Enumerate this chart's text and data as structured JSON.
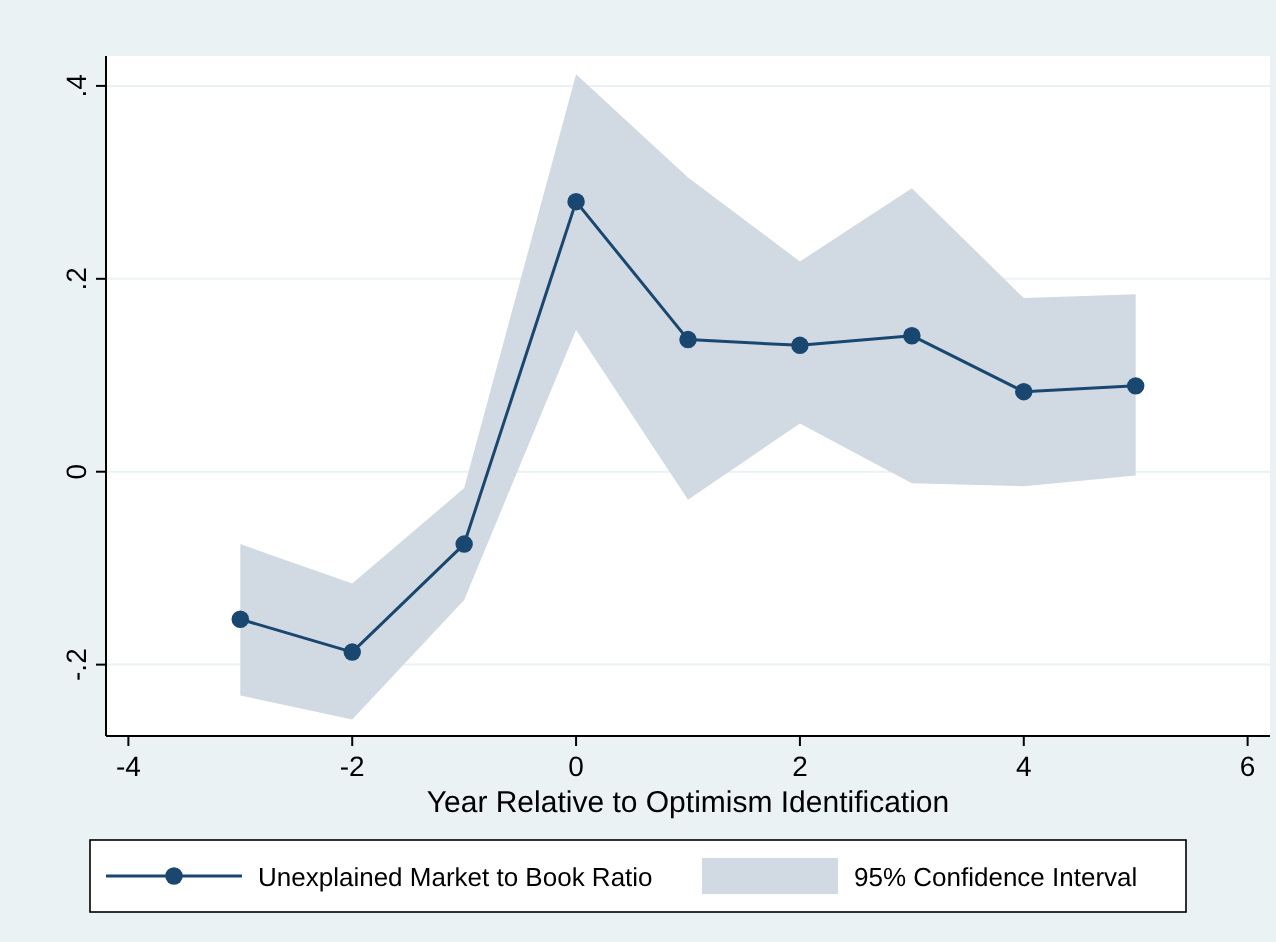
{
  "chart_data": {
    "type": "line",
    "xlabel": "Year Relative to Optimism Identification",
    "x": [
      -3,
      -2,
      -1,
      0,
      1,
      2,
      3,
      4,
      5
    ],
    "series": [
      {
        "name": "Unexplained Market to Book Ratio",
        "color": "#1a476f",
        "values": [
          -0.153,
          -0.187,
          -0.075,
          0.28,
          0.137,
          0.131,
          0.141,
          0.083,
          0.089
        ],
        "lower": [
          -0.232,
          -0.257,
          -0.133,
          0.147,
          -0.029,
          0.05,
          -0.012,
          -0.015,
          -0.004
        ],
        "upper": [
          -0.075,
          -0.116,
          -0.017,
          0.412,
          0.305,
          0.218,
          0.294,
          0.18,
          0.184
        ]
      }
    ],
    "annotations": [
      "95% Confidence Interval"
    ],
    "xlim": [
      -4.2,
      6.2
    ],
    "xticks": [
      -4,
      -2,
      0,
      2,
      4,
      6
    ],
    "ylim": [
      -0.274,
      0.431
    ],
    "yticks": [
      {
        "value": -0.2,
        "label": "-.2"
      },
      0,
      {
        "value": 0.2,
        "label": ".2"
      },
      {
        "value": 0.4,
        "label": ".4"
      }
    ],
    "grid": "y",
    "legend": "bottom",
    "marker": "circle",
    "line_style": "solid"
  }
}
